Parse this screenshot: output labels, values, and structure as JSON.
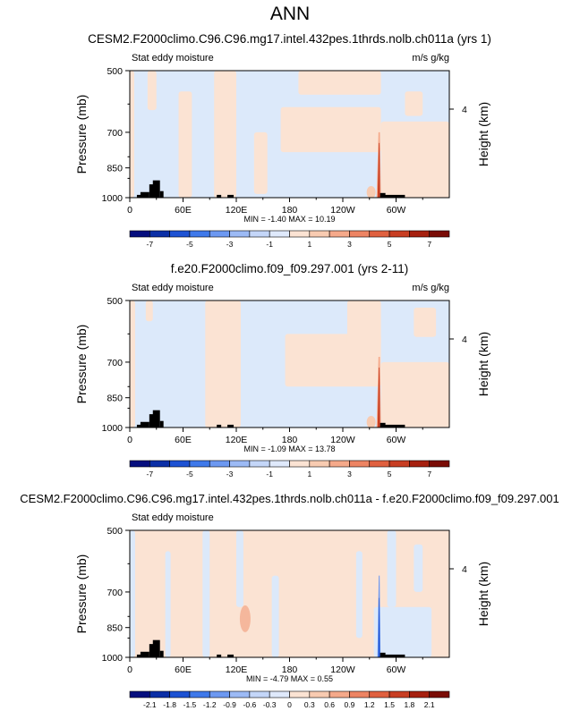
{
  "figure_title": "ANN",
  "chart_data": [
    {
      "type": "heatmap",
      "title": "CESM2.F2000climo.C96.C96.mg17.intel.432pes.1thrds.nolb.ch011a (yrs 1)",
      "left_label": "Stat eddy moisture",
      "right_label": "m/s g/kg",
      "ylabel": "Pressure (mb)",
      "right_ylabel": "Height (km)",
      "yticks": [
        "500",
        "700",
        "850",
        "1000"
      ],
      "right_ticks": [
        "4"
      ],
      "xticks": [
        "0",
        "60E",
        "120E",
        "180",
        "120W",
        "60W"
      ],
      "stats": "MIN = -1.40  MAX = 10.19",
      "colorbar_ticks": [
        "-7",
        "-5",
        "-3",
        "-1",
        "1",
        "3",
        "5",
        "7"
      ],
      "colorbar_colors": [
        "#050e7e",
        "#0b2fa6",
        "#1d52d3",
        "#3f79ea",
        "#6c98f1",
        "#9cbaf5",
        "#c4d6f8",
        "#dfe9fb",
        "#fbe3d3",
        "#f8cbb1",
        "#f5a98a",
        "#ed8463",
        "#e0603f",
        "#c83e23",
        "#a6200f",
        "#7a0c06"
      ],
      "background_color": "#dce9fa",
      "positive_patches": [
        {
          "lon_from": 0,
          "lon_to": 5,
          "p_from": 500,
          "p_to": 1000
        },
        {
          "lon_from": 20,
          "lon_to": 30,
          "p_from": 500,
          "p_to": 620
        },
        {
          "lon_from": 55,
          "lon_to": 70,
          "p_from": 560,
          "p_to": 1000
        },
        {
          "lon_from": 95,
          "lon_to": 120,
          "p_from": 500,
          "p_to": 1000
        },
        {
          "lon_from": 140,
          "lon_to": 155,
          "p_from": 700,
          "p_to": 980
        },
        {
          "lon_from": 170,
          "lon_to": 283,
          "p_from": 610,
          "p_to": 780
        },
        {
          "lon_from": 190,
          "lon_to": 283,
          "p_from": 500,
          "p_to": 570
        },
        {
          "lon_from": 283,
          "lon_to": 360,
          "p_from": 660,
          "p_to": 1000
        },
        {
          "lon_from": 310,
          "lon_to": 330,
          "p_from": 560,
          "p_to": 640
        }
      ],
      "topography": [
        {
          "lon_from": 8,
          "lon_to": 16,
          "p_top": 985
        },
        {
          "lon_from": 12,
          "lon_to": 22,
          "p_top": 970
        },
        {
          "lon_from": 22,
          "lon_to": 30,
          "p_top": 930
        },
        {
          "lon_from": 26,
          "lon_to": 34,
          "p_top": 910
        },
        {
          "lon_from": 34,
          "lon_to": 38,
          "p_top": 965
        },
        {
          "lon_from": 98,
          "lon_to": 103,
          "p_top": 985
        },
        {
          "lon_from": 110,
          "lon_to": 117,
          "p_top": 985
        },
        {
          "lon_from": 282,
          "lon_to": 288,
          "p_top": 975
        },
        {
          "lon_from": 285,
          "lon_to": 310,
          "p_top": 985
        }
      ],
      "spike": {
        "lon": 281,
        "p_top": 700,
        "max_value": 10.19
      }
    },
    {
      "type": "heatmap",
      "title": "f.e20.F2000climo.f09_f09.297.001 (yrs 2-11)",
      "left_label": "Stat eddy moisture",
      "right_label": "m/s g/kg",
      "ylabel": "Pressure (mb)",
      "right_ylabel": "Height (km)",
      "yticks": [
        "500",
        "700",
        "850",
        "1000"
      ],
      "right_ticks": [
        "4"
      ],
      "xticks": [
        "0",
        "60E",
        "120E",
        "180",
        "120W",
        "60W"
      ],
      "stats": "MIN = -1.09  MAX = 13.78",
      "colorbar_ticks": [
        "-7",
        "-5",
        "-3",
        "-1",
        "1",
        "3",
        "5",
        "7"
      ],
      "colorbar_colors": [
        "#050e7e",
        "#0b2fa6",
        "#1d52d3",
        "#3f79ea",
        "#6c98f1",
        "#9cbaf5",
        "#c4d6f8",
        "#dfe9fb",
        "#fbe3d3",
        "#f8cbb1",
        "#f5a98a",
        "#ed8463",
        "#e0603f",
        "#c83e23",
        "#a6200f",
        "#7a0c06"
      ],
      "background_color": "#dce9fa",
      "positive_patches": [
        {
          "lon_from": 0,
          "lon_to": 6,
          "p_from": 500,
          "p_to": 1000
        },
        {
          "lon_from": 18,
          "lon_to": 26,
          "p_from": 500,
          "p_to": 560
        },
        {
          "lon_from": 85,
          "lon_to": 125,
          "p_from": 500,
          "p_to": 1000
        },
        {
          "lon_from": 175,
          "lon_to": 283,
          "p_from": 600,
          "p_to": 800
        },
        {
          "lon_from": 245,
          "lon_to": 283,
          "p_from": 500,
          "p_to": 640
        },
        {
          "lon_from": 283,
          "lon_to": 360,
          "p_from": 700,
          "p_to": 1000
        },
        {
          "lon_from": 320,
          "lon_to": 345,
          "p_from": 520,
          "p_to": 610
        }
      ],
      "topography": [
        {
          "lon_from": 8,
          "lon_to": 16,
          "p_top": 985
        },
        {
          "lon_from": 12,
          "lon_to": 22,
          "p_top": 970
        },
        {
          "lon_from": 22,
          "lon_to": 30,
          "p_top": 930
        },
        {
          "lon_from": 26,
          "lon_to": 34,
          "p_top": 910
        },
        {
          "lon_from": 34,
          "lon_to": 38,
          "p_top": 965
        },
        {
          "lon_from": 98,
          "lon_to": 103,
          "p_top": 985
        },
        {
          "lon_from": 110,
          "lon_to": 117,
          "p_top": 985
        },
        {
          "lon_from": 282,
          "lon_to": 288,
          "p_top": 975
        },
        {
          "lon_from": 285,
          "lon_to": 310,
          "p_top": 985
        }
      ],
      "spike": {
        "lon": 281,
        "p_top": 680,
        "max_value": 13.78
      }
    },
    {
      "type": "heatmap",
      "title": "CESM2.F2000climo.C96.C96.mg17.intel.432pes.1thrds.nolb.ch011a - f.e20.F2000climo.f09_f09.297.001",
      "left_label": "Stat eddy moisture",
      "right_label": "",
      "ylabel": "Pressure (mb)",
      "right_ylabel": "Height (km)",
      "yticks": [
        "500",
        "700",
        "850",
        "1000"
      ],
      "right_ticks": [
        "4"
      ],
      "xticks": [
        "0",
        "60E",
        "120E",
        "180",
        "120W",
        "60W"
      ],
      "stats": "MIN = -4.79  MAX =   0.55",
      "colorbar_ticks": [
        "-2.1",
        "-1.8",
        "-1.5",
        "-1.2",
        "-0.9",
        "-0.6",
        "-0.3",
        "0",
        "0.3",
        "0.6",
        "0.9",
        "1.2",
        "1.5",
        "1.8",
        "2.1"
      ],
      "colorbar_colors": [
        "#050e7e",
        "#0b2fa6",
        "#1d52d3",
        "#3f79ea",
        "#6c98f1",
        "#9cbaf5",
        "#c4d6f8",
        "#dfe9fb",
        "#fbe3d3",
        "#f8cbb1",
        "#f5a98a",
        "#ed8463",
        "#e0603f",
        "#c83e23",
        "#a6200f",
        "#7a0c06"
      ],
      "background_color": "#fbe3d3",
      "negative_patches": [
        {
          "lon_from": 0,
          "lon_to": 6,
          "p_from": 500,
          "p_to": 1000
        },
        {
          "lon_from": 40,
          "lon_to": 46,
          "p_from": 560,
          "p_to": 1000
        },
        {
          "lon_from": 82,
          "lon_to": 90,
          "p_from": 500,
          "p_to": 1000
        },
        {
          "lon_from": 120,
          "lon_to": 128,
          "p_from": 500,
          "p_to": 760
        },
        {
          "lon_from": 160,
          "lon_to": 168,
          "p_from": 640,
          "p_to": 1000
        },
        {
          "lon_from": 255,
          "lon_to": 262,
          "p_from": 560,
          "p_to": 900
        },
        {
          "lon_from": 275,
          "lon_to": 340,
          "p_from": 760,
          "p_to": 1000
        },
        {
          "lon_from": 290,
          "lon_to": 300,
          "p_from": 500,
          "p_to": 760
        },
        {
          "lon_from": 320,
          "lon_to": 330,
          "p_from": 540,
          "p_to": 700
        }
      ],
      "positive_blob": {
        "lon": 130,
        "p": 810
      },
      "topography": [
        {
          "lon_from": 8,
          "lon_to": 16,
          "p_top": 985
        },
        {
          "lon_from": 12,
          "lon_to": 22,
          "p_top": 970
        },
        {
          "lon_from": 22,
          "lon_to": 30,
          "p_top": 930
        },
        {
          "lon_from": 26,
          "lon_to": 34,
          "p_top": 910
        },
        {
          "lon_from": 34,
          "lon_to": 38,
          "p_top": 965
        },
        {
          "lon_from": 98,
          "lon_to": 103,
          "p_top": 985
        },
        {
          "lon_from": 110,
          "lon_to": 117,
          "p_top": 985
        },
        {
          "lon_from": 282,
          "lon_to": 288,
          "p_top": 975
        },
        {
          "lon_from": 285,
          "lon_to": 310,
          "p_top": 985
        }
      ],
      "spike": {
        "lon": 281,
        "p_top": 640,
        "min_value": -4.79
      }
    }
  ]
}
